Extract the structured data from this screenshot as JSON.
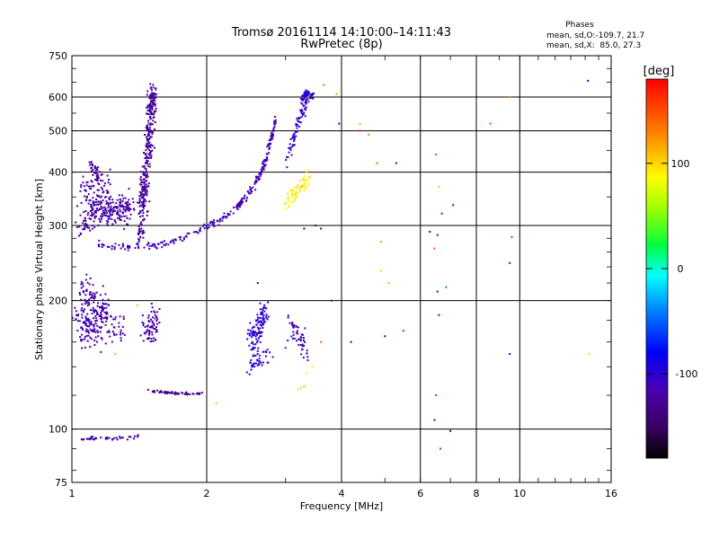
{
  "chart_data": {
    "type": "scatter",
    "title": "Tromsø 20161114 14:10:00–14:11:43",
    "subtitle": "RwPretec (8p)",
    "stats": {
      "heading": "Phases",
      "line1": "mean, sd,O:-109.7, 21.7",
      "line2": "mean, sd,X:  85.0, 27.3"
    },
    "xlabel": "Frequency [MHz]",
    "ylabel": "Stationary phase Virtual Height [km]",
    "x_scale": "log",
    "y_scale": "log",
    "xlim": [
      1,
      16
    ],
    "ylim": [
      75,
      750
    ],
    "grid": true,
    "x_ticks": [
      1,
      2,
      4,
      6,
      8,
      10,
      16
    ],
    "y_ticks": [
      75,
      100,
      200,
      300,
      400,
      500,
      600,
      750
    ],
    "colorbar": {
      "label": "[deg]",
      "range": [
        -180,
        180
      ],
      "ticks": [
        100,
        0,
        -100
      ]
    },
    "clusters": [
      {
        "name": "F-layer O-trace",
        "phase": -112,
        "n": 260,
        "points": [
          [
            1.15,
            272
          ],
          [
            1.3,
            268
          ],
          [
            1.5,
            268
          ],
          [
            1.7,
            275
          ],
          [
            1.9,
            290
          ],
          [
            2.1,
            305
          ],
          [
            2.3,
            325
          ],
          [
            2.45,
            350
          ],
          [
            2.6,
            385
          ],
          [
            2.7,
            420
          ],
          [
            2.78,
            470
          ],
          [
            2.85,
            540
          ]
        ],
        "spread": [
          0.012,
          0.03
        ]
      },
      {
        "name": "F-layer X-trace",
        "phase": -105,
        "n": 80,
        "points": [
          [
            3.0,
            420
          ],
          [
            3.1,
            470
          ],
          [
            3.2,
            520
          ],
          [
            3.3,
            560
          ],
          [
            3.35,
            610
          ]
        ],
        "spread": [
          0.015,
          0.06
        ]
      },
      {
        "name": "F-layer X top",
        "phase": -100,
        "n": 40,
        "points": [
          [
            3.25,
            590
          ],
          [
            3.35,
            620
          ],
          [
            3.45,
            595
          ]
        ],
        "spread": [
          0.012,
          0.04
        ]
      },
      {
        "name": "F-layer X yellow",
        "phase": 90,
        "n": 60,
        "points": [
          [
            3.0,
            340
          ],
          [
            3.2,
            360
          ],
          [
            3.4,
            400
          ]
        ],
        "spread": [
          0.02,
          0.06
        ]
      },
      {
        "name": "spread F 1.5 MHz",
        "phase": -125,
        "n": 320,
        "points": [
          [
            1.42,
            280
          ],
          [
            1.45,
            360
          ],
          [
            1.48,
            450
          ],
          [
            1.5,
            550
          ],
          [
            1.52,
            620
          ]
        ],
        "spread": [
          0.035,
          0.1
        ]
      },
      {
        "name": "spread F broad",
        "phase": -120,
        "n": 300,
        "points": [
          [
            1.05,
            300
          ],
          [
            1.15,
            330
          ],
          [
            1.25,
            320
          ],
          [
            1.35,
            330
          ],
          [
            1.05,
            360
          ],
          [
            1.2,
            370
          ]
        ],
        "spread": [
          0.05,
          0.12
        ]
      },
      {
        "name": "E/Es low",
        "phase": -115,
        "n": 240,
        "points": [
          [
            1.03,
            185
          ],
          [
            1.1,
            175
          ],
          [
            1.2,
            190
          ],
          [
            1.05,
            160
          ],
          [
            1.3,
            170
          ],
          [
            1.12,
            200
          ],
          [
            1.05,
            215
          ]
        ],
        "spread": [
          0.04,
          0.12
        ]
      },
      {
        "name": "E 1.5 MHz",
        "phase": -120,
        "n": 70,
        "points": [
          [
            1.45,
            175
          ],
          [
            1.5,
            165
          ],
          [
            1.55,
            190
          ]
        ],
        "spread": [
          0.04,
          0.1
        ]
      },
      {
        "name": "Es flat",
        "phase": -128,
        "n": 60,
        "points": [
          [
            1.45,
            123
          ],
          [
            1.6,
            122
          ],
          [
            1.75,
            121
          ],
          [
            1.95,
            121
          ]
        ],
        "spread": [
          0.035,
          0.008
        ]
      },
      {
        "name": "E 2.5 MHz",
        "phase": -100,
        "n": 150,
        "points": [
          [
            2.5,
            160
          ],
          [
            2.6,
            175
          ],
          [
            2.7,
            190
          ],
          [
            2.5,
            140
          ],
          [
            2.75,
            150
          ]
        ],
        "spread": [
          0.04,
          0.1
        ]
      },
      {
        "name": "E 3.2 MHz",
        "phase": -110,
        "n": 50,
        "points": [
          [
            3.05,
            175
          ],
          [
            3.25,
            165
          ],
          [
            3.4,
            145
          ]
        ],
        "spread": [
          0.04,
          0.1
        ]
      },
      {
        "name": "D 1 MHz",
        "phase": -118,
        "n": 40,
        "points": [
          [
            1.05,
            95
          ],
          [
            1.25,
            95
          ],
          [
            1.45,
            96
          ]
        ],
        "spread": [
          0.035,
          0.015
        ]
      },
      {
        "name": "upper 1 MHz",
        "phase": -125,
        "n": 30,
        "points": [
          [
            1.1,
            420
          ],
          [
            1.15,
            390
          ]
        ],
        "spread": [
          0.03,
          0.06
        ]
      }
    ],
    "sparse_points": [
      [
        3.25,
        125,
        55
      ],
      [
        3.3,
        126,
        50
      ],
      [
        3.2,
        124,
        60
      ],
      [
        3.35,
        135,
        80
      ],
      [
        3.45,
        140,
        90
      ],
      [
        3.0,
        155,
        -60
      ],
      [
        4.4,
        520,
        120
      ],
      [
        4.6,
        490,
        130
      ],
      [
        3.65,
        640,
        140
      ],
      [
        3.9,
        610,
        120
      ],
      [
        3.95,
        520,
        -90
      ],
      [
        5.3,
        420,
        -110
      ],
      [
        6.5,
        440,
        150
      ],
      [
        6.6,
        370,
        110
      ],
      [
        6.7,
        320,
        -60
      ],
      [
        6.55,
        285,
        -100
      ],
      [
        6.45,
        265,
        150
      ],
      [
        6.3,
        290,
        -105
      ],
      [
        6.55,
        210,
        -120
      ],
      [
        6.85,
        215,
        -40
      ],
      [
        6.6,
        185,
        -110
      ],
      [
        6.5,
        120,
        160
      ],
      [
        6.45,
        105,
        -130
      ],
      [
        6.65,
        90,
        170
      ],
      [
        7.0,
        99,
        -160
      ],
      [
        7.1,
        335,
        -115
      ],
      [
        8.6,
        520,
        155
      ],
      [
        9.5,
        600,
        130
      ],
      [
        9.6,
        282,
        -45
      ],
      [
        9.5,
        245,
        -120
      ],
      [
        9.5,
        150,
        -90
      ],
      [
        14.3,
        150,
        95
      ],
      [
        14.2,
        655,
        -75
      ],
      [
        4.9,
        275,
        120
      ],
      [
        4.9,
        235,
        100
      ],
      [
        5.1,
        220,
        110
      ],
      [
        5.0,
        165,
        -150
      ],
      [
        5.5,
        170,
        170
      ],
      [
        4.8,
        420,
        140
      ],
      [
        4.4,
        500,
        160
      ],
      [
        3.5,
        300,
        -140
      ],
      [
        3.6,
        295,
        -140
      ],
      [
        3.3,
        295,
        -90
      ],
      [
        1.25,
        150,
        40
      ],
      [
        1.4,
        195,
        50
      ],
      [
        2.1,
        115,
        55
      ],
      [
        1.9,
        121,
        -110
      ],
      [
        1.8,
        122,
        -120
      ],
      [
        3.8,
        200,
        -130
      ],
      [
        3.6,
        160,
        140
      ],
      [
        2.6,
        220,
        -90
      ],
      [
        4.2,
        160,
        -100
      ]
    ]
  }
}
